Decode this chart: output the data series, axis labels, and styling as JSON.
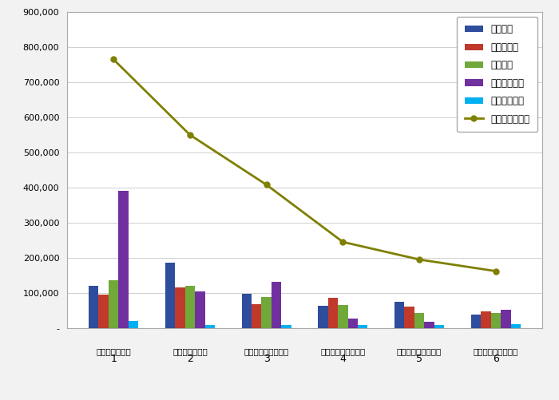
{
  "categories": [
    "한국특허정보원",
    "한국발명진흥회",
    "한국특허전략개발원",
    "한국특허기술진흥원",
    "한국지식재산보호원",
    "한국지식재산연구원"
  ],
  "x_labels": [
    "1",
    "2",
    "3",
    "4",
    "5",
    "6"
  ],
  "series": {
    "참여지수": [
      120000,
      185000,
      97000,
      63000,
      75000,
      38000
    ],
    "미디어지수": [
      95000,
      115000,
      68000,
      85000,
      60000,
      48000
    ],
    "소통지수": [
      135000,
      120000,
      88000,
      65000,
      43000,
      42000
    ],
    "커뮤니티지수": [
      390000,
      105000,
      132000,
      28000,
      18000,
      52000
    ],
    "사회공헌지수": [
      20000,
      8000,
      8000,
      8000,
      8000,
      10000
    ],
    "브랜드평판지수": [
      765000,
      550000,
      408000,
      245000,
      195000,
      162000
    ]
  },
  "bar_colors": {
    "참여지수": "#2e4d9c",
    "미디어지수": "#c0392b",
    "소통지수": "#70a83a",
    "커뮤니티지수": "#7030a0",
    "사회공헌지수": "#00b0f0"
  },
  "line_color": "#7f7f00",
  "ylim": [
    0,
    900000
  ],
  "yticks": [
    0,
    100000,
    200000,
    300000,
    400000,
    500000,
    600000,
    700000,
    800000,
    900000
  ],
  "ytick_labels": [
    "-",
    "100,000",
    "200,000",
    "300,000",
    "400,000",
    "500,000",
    "600,000",
    "700,000",
    "800,000",
    "900,000"
  ],
  "background_color": "#f2f2f2",
  "plot_background": "#ffffff",
  "bar_width": 0.13,
  "legend_order": [
    "참여지수",
    "미디어지수",
    "소통지수",
    "커뮤니티지수",
    "사회공헌지수",
    "브랜드평판지수"
  ]
}
